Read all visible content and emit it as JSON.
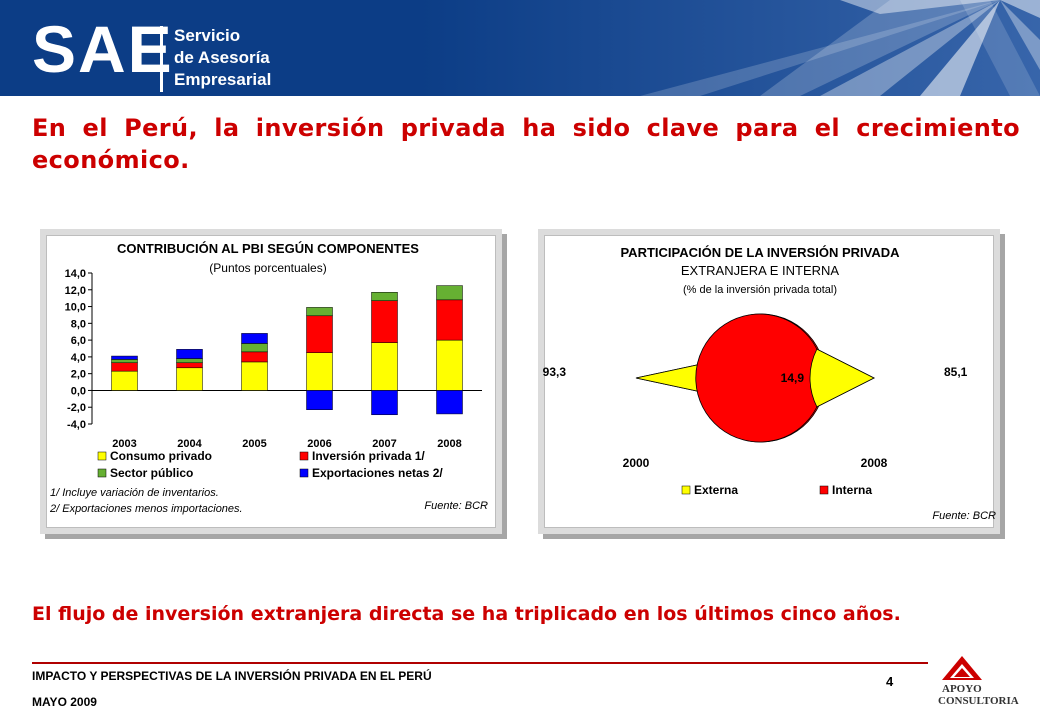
{
  "header": {
    "logo_text": "SAE",
    "logo_sub": [
      "Servicio",
      "de Asesoría",
      "Empresarial"
    ],
    "banner_color": "#0c3d86"
  },
  "headline": "En el Perú, la inversión privada ha sido clave para el crecimiento económico.",
  "subheadline": "El flujo de inversión extranjera directa se ha triplicado en los últimos cinco años.",
  "footer": {
    "title": "IMPACTO Y PERSPECTIVAS DE LA INVERSIÓN PRIVADA EN EL PERÚ",
    "date": "MAYO 2009",
    "page_number": "4",
    "company_logo": [
      "APOYO",
      "CONSULTORIA"
    ]
  },
  "chart_data": [
    {
      "type": "bar",
      "stacked": true,
      "title": "CONTRIBUCIÓN AL PBI SEGÚN COMPONENTES",
      "subtitle": "(Puntos porcentuales)",
      "categories": [
        "2003",
        "2004",
        "2005",
        "2006",
        "2007",
        "2008"
      ],
      "ylim": [
        -4.0,
        14.0
      ],
      "yticks": [
        "14,0",
        "12,0",
        "10,0",
        "8,0",
        "6,0",
        "4,0",
        "2,0",
        "0,0",
        "-2,0",
        "-4,0"
      ],
      "ytick_values": [
        14,
        12,
        10,
        8,
        6,
        4,
        2,
        0,
        -2,
        -4
      ],
      "series": [
        {
          "name": "Consumo privado",
          "color": "#ffff00",
          "values": [
            2.3,
            2.7,
            3.4,
            4.5,
            5.7,
            6.0
          ]
        },
        {
          "name": "Inversión privada 1/",
          "color": "#ff0000",
          "values": [
            1.0,
            0.6,
            1.2,
            4.4,
            5.0,
            4.8
          ]
        },
        {
          "name": "Sector público",
          "color": "#66b032",
          "values": [
            0.4,
            0.5,
            1.0,
            1.0,
            1.0,
            1.7
          ]
        },
        {
          "name": "Exportaciones netas 2/",
          "color": "#0000ff",
          "values": [
            0.4,
            1.1,
            1.2,
            -2.3,
            -2.9,
            -2.8
          ]
        }
      ],
      "notes": [
        "1/ Incluye variación de inventarios.",
        "2/ Exportaciones menos importaciones."
      ],
      "source": "Fuente: BCR"
    },
    {
      "type": "pie",
      "title": "PARTICIPACIÓN DE LA INVERSIÓN PRIVADA",
      "title_line2": "EXTRANJERA E INTERNA",
      "subtitle": "(% de la inversión privada total)",
      "pies": [
        {
          "label": "2000",
          "slices": [
            {
              "name": "Externa",
              "value": 6.7,
              "label": "6,7"
            },
            {
              "name": "Interna",
              "value": 93.3,
              "label": "93,3"
            }
          ]
        },
        {
          "label": "2008",
          "slices": [
            {
              "name": "Externa",
              "value": 14.9,
              "label": "14,9"
            },
            {
              "name": "Interna",
              "value": 85.1,
              "label": "85,1"
            }
          ]
        }
      ],
      "legend": [
        {
          "name": "Externa",
          "color": "#ffff00"
        },
        {
          "name": "Interna",
          "color": "#ff0000"
        }
      ],
      "source": "Fuente: BCR"
    }
  ]
}
